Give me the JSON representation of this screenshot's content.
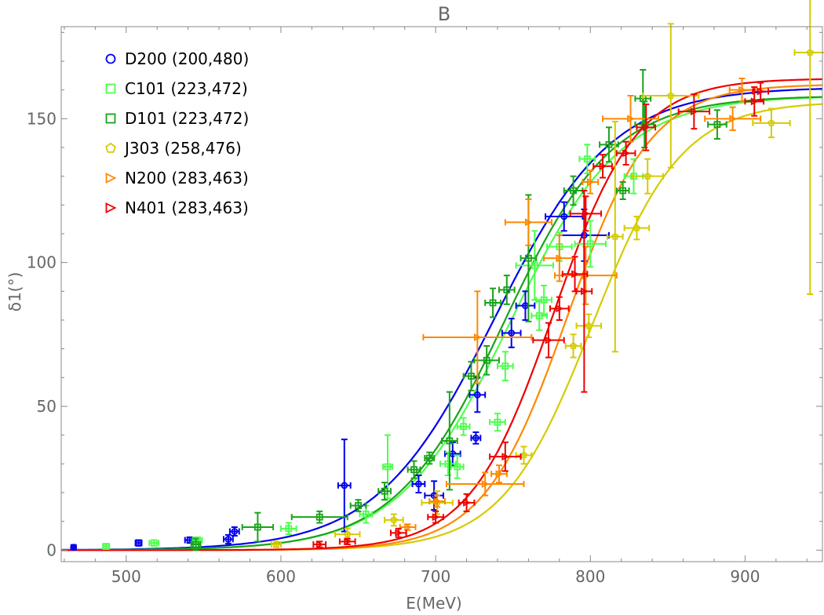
{
  "chart_data": {
    "type": "scatter",
    "title": "B",
    "xlabel": "E(MeV)",
    "ylabel": "δ1(°)",
    "xlim": [
      458,
      950
    ],
    "ylim": [
      -4,
      182
    ],
    "x_ticks": [
      500,
      600,
      700,
      800,
      900
    ],
    "y_ticks": [
      0,
      50,
      100,
      150
    ],
    "grid": false,
    "legend_position": "top-left",
    "series": [
      {
        "name": "D200 (200,480)",
        "color": "#0000ee",
        "marker": "circle",
        "points": [
          {
            "x": 466,
            "y": 1,
            "xerr": 1,
            "yerr": 0.8
          },
          {
            "x": 508,
            "y": 2.5,
            "xerr": 2,
            "yerr": 1
          },
          {
            "x": 541,
            "y": 3.5,
            "xerr": 3,
            "yerr": 1
          },
          {
            "x": 566,
            "y": 3.8,
            "xerr": 3,
            "yerr": 1.5
          },
          {
            "x": 570,
            "y": 6.5,
            "xerr": 3,
            "yerr": 1.5
          },
          {
            "x": 641,
            "y": 22.5,
            "xerr": 4,
            "yerr": 16
          },
          {
            "x": 689,
            "y": 23,
            "xerr": 4,
            "yerr": 3
          },
          {
            "x": 699,
            "y": 19,
            "xerr": 6,
            "yerr": 5
          },
          {
            "x": 711,
            "y": 33.5,
            "xerr": 5,
            "yerr": 4
          },
          {
            "x": 726,
            "y": 39,
            "xerr": 3,
            "yerr": 2
          },
          {
            "x": 727,
            "y": 54,
            "xerr": 5,
            "yerr": 6
          },
          {
            "x": 749,
            "y": 75.5,
            "xerr": 6,
            "yerr": 5
          },
          {
            "x": 758,
            "y": 85,
            "xerr": 6,
            "yerr": 5
          },
          {
            "x": 783,
            "y": 116,
            "xerr": 12,
            "yerr": 5
          },
          {
            "x": 796,
            "y": 109.5,
            "xerr": 16,
            "yerr": 9
          }
        ],
        "curve": {
          "mid": 738,
          "width": 38,
          "max": 161
        }
      },
      {
        "name": "C101 (223,472)",
        "color": "#4dff4d",
        "marker": "square",
        "points": [
          {
            "x": 487,
            "y": 1.3,
            "xerr": 2,
            "yerr": 0.8
          },
          {
            "x": 518,
            "y": 2.5,
            "xerr": 3,
            "yerr": 1
          },
          {
            "x": 546,
            "y": 3.5,
            "xerr": 3,
            "yerr": 1
          },
          {
            "x": 605,
            "y": 7.5,
            "xerr": 5,
            "yerr": 2
          },
          {
            "x": 655,
            "y": 12.5,
            "xerr": 4,
            "yerr": 3
          },
          {
            "x": 669,
            "y": 29,
            "xerr": 3,
            "yerr": 11
          },
          {
            "x": 708,
            "y": 30,
            "xerr": 5,
            "yerr": 4
          },
          {
            "x": 714,
            "y": 29,
            "xerr": 4,
            "yerr": 4
          },
          {
            "x": 718,
            "y": 43,
            "xerr": 4,
            "yerr": 3
          },
          {
            "x": 740,
            "y": 44.5,
            "xerr": 5,
            "yerr": 3
          },
          {
            "x": 745,
            "y": 64,
            "xerr": 5,
            "yerr": 5
          },
          {
            "x": 764,
            "y": 99,
            "xerr": 12,
            "yerr": 12
          },
          {
            "x": 767,
            "y": 81.5,
            "xerr": 5,
            "yerr": 5
          },
          {
            "x": 770,
            "y": 87,
            "xerr": 5,
            "yerr": 5
          },
          {
            "x": 780,
            "y": 105.5,
            "xerr": 8,
            "yerr": 5
          },
          {
            "x": 800,
            "y": 106.5,
            "xerr": 10,
            "yerr": 8
          },
          {
            "x": 798,
            "y": 136,
            "xerr": 5,
            "yerr": 5
          },
          {
            "x": 828,
            "y": 130,
            "xerr": 6,
            "yerr": 6
          }
        ],
        "curve": {
          "mid": 748,
          "width": 36,
          "max": 158
        }
      },
      {
        "name": "D101 (223,472)",
        "color": "#1aa31a",
        "marker": "square",
        "points": [
          {
            "x": 545,
            "y": 2,
            "xerr": 3,
            "yerr": 2
          },
          {
            "x": 585,
            "y": 8,
            "xerr": 10,
            "yerr": 5
          },
          {
            "x": 625,
            "y": 11.5,
            "xerr": 18,
            "yerr": 2
          },
          {
            "x": 650,
            "y": 15.5,
            "xerr": 5,
            "yerr": 2
          },
          {
            "x": 667,
            "y": 20.5,
            "xerr": 4,
            "yerr": 3
          },
          {
            "x": 686,
            "y": 28,
            "xerr": 4,
            "yerr": 3
          },
          {
            "x": 696,
            "y": 32,
            "xerr": 3,
            "yerr": 2
          },
          {
            "x": 709,
            "y": 38,
            "xerr": 5,
            "yerr": 17
          },
          {
            "x": 723,
            "y": 60.5,
            "xerr": 5,
            "yerr": 5
          },
          {
            "x": 733,
            "y": 66,
            "xerr": 8,
            "yerr": 5
          },
          {
            "x": 737,
            "y": 86,
            "xerr": 5,
            "yerr": 5
          },
          {
            "x": 746,
            "y": 90.5,
            "xerr": 5,
            "yerr": 5
          },
          {
            "x": 760,
            "y": 101.5,
            "xerr": 5,
            "yerr": 22
          },
          {
            "x": 789,
            "y": 125,
            "xerr": 6,
            "yerr": 5
          },
          {
            "x": 812,
            "y": 141,
            "xerr": 6,
            "yerr": 6
          },
          {
            "x": 821,
            "y": 125,
            "xerr": 4,
            "yerr": 3
          },
          {
            "x": 834,
            "y": 157,
            "xerr": 5,
            "yerr": 10
          },
          {
            "x": 835,
            "y": 148,
            "xerr": 6,
            "yerr": 8
          },
          {
            "x": 882,
            "y": 148,
            "xerr": 6,
            "yerr": 5
          }
        ],
        "curve": {
          "mid": 744,
          "width": 35,
          "max": 158
        }
      },
      {
        "name": "J303 (258,476)",
        "color": "#d4cc00",
        "marker": "pentagon",
        "points": [
          {
            "x": 597,
            "y": 2,
            "xerr": 3,
            "yerr": 1
          },
          {
            "x": 643,
            "y": 5.5,
            "xerr": 8,
            "yerr": 2
          },
          {
            "x": 673,
            "y": 10.5,
            "xerr": 6,
            "yerr": 2
          },
          {
            "x": 701,
            "y": 16.5,
            "xerr": 10,
            "yerr": 4
          },
          {
            "x": 757,
            "y": 33,
            "xerr": 5,
            "yerr": 3
          },
          {
            "x": 789,
            "y": 71,
            "xerr": 5,
            "yerr": 4
          },
          {
            "x": 799,
            "y": 78,
            "xerr": 8,
            "yerr": 4
          },
          {
            "x": 816,
            "y": 109,
            "xerr": 5,
            "yerr": 40
          },
          {
            "x": 830,
            "y": 112,
            "xerr": 8,
            "yerr": 4
          },
          {
            "x": 837,
            "y": 130,
            "xerr": 10,
            "yerr": 6
          },
          {
            "x": 852,
            "y": 158,
            "xerr": 18,
            "yerr": 25
          },
          {
            "x": 917,
            "y": 148.5,
            "xerr": 12,
            "yerr": 5
          },
          {
            "x": 942,
            "y": 173,
            "xerr": 10,
            "yerr": 84
          }
        ],
        "curve": {
          "mid": 801,
          "width": 29,
          "max": 156
        }
      },
      {
        "name": "N200 (283,463)",
        "color": "#ff8800",
        "marker": "triangle",
        "points": [
          {
            "x": 682,
            "y": 8,
            "xerr": 5,
            "yerr": 1
          },
          {
            "x": 701,
            "y": 17,
            "xerr": 5,
            "yerr": 2
          },
          {
            "x": 727,
            "y": 74,
            "xerr": 35,
            "yerr": 16
          },
          {
            "x": 732,
            "y": 23,
            "xerr": 25,
            "yerr": 4
          },
          {
            "x": 741,
            "y": 26.5,
            "xerr": 5,
            "yerr": 3
          },
          {
            "x": 760,
            "y": 114,
            "xerr": 15,
            "yerr": 8
          },
          {
            "x": 780,
            "y": 101.5,
            "xerr": 10,
            "yerr": 8
          },
          {
            "x": 797,
            "y": 95.5,
            "xerr": 20,
            "yerr": 10
          },
          {
            "x": 800,
            "y": 128,
            "xerr": 5,
            "yerr": 4
          },
          {
            "x": 826,
            "y": 150,
            "xerr": 18,
            "yerr": 8
          },
          {
            "x": 892,
            "y": 150,
            "xerr": 18,
            "yerr": 4
          },
          {
            "x": 898,
            "y": 160,
            "xerr": 8,
            "yerr": 4
          }
        ],
        "curve": {
          "mid": 785,
          "width": 27,
          "max": 162
        }
      },
      {
        "name": "N401 (283,463)",
        "color": "#ee0000",
        "marker": "triangle",
        "points": [
          {
            "x": 625,
            "y": 2,
            "xerr": 4,
            "yerr": 1
          },
          {
            "x": 643,
            "y": 3,
            "xerr": 5,
            "yerr": 1
          },
          {
            "x": 676,
            "y": 6,
            "xerr": 5,
            "yerr": 1.5
          },
          {
            "x": 700,
            "y": 11.5,
            "xerr": 5,
            "yerr": 2
          },
          {
            "x": 720,
            "y": 16.5,
            "xerr": 5,
            "yerr": 3
          },
          {
            "x": 745,
            "y": 32.5,
            "xerr": 10,
            "yerr": 5
          },
          {
            "x": 773,
            "y": 73,
            "xerr": 10,
            "yerr": 6
          },
          {
            "x": 780,
            "y": 84,
            "xerr": 6,
            "yerr": 4
          },
          {
            "x": 790,
            "y": 96,
            "xerr": 8,
            "yerr": 6
          },
          {
            "x": 796,
            "y": 90,
            "xerr": 5,
            "yerr": 35
          },
          {
            "x": 797,
            "y": 117,
            "xerr": 10,
            "yerr": 6
          },
          {
            "x": 808,
            "y": 133.5,
            "xerr": 6,
            "yerr": 4
          },
          {
            "x": 823,
            "y": 138,
            "xerr": 6,
            "yerr": 4
          },
          {
            "x": 836,
            "y": 147,
            "xerr": 6,
            "yerr": 8
          },
          {
            "x": 867,
            "y": 152.5,
            "xerr": 10,
            "yerr": 6
          },
          {
            "x": 906,
            "y": 156,
            "xerr": 6,
            "yerr": 5
          },
          {
            "x": 910,
            "y": 159.5,
            "xerr": 5,
            "yerr": 3
          }
        ],
        "curve": {
          "mid": 776,
          "width": 27,
          "max": 164
        }
      }
    ]
  }
}
